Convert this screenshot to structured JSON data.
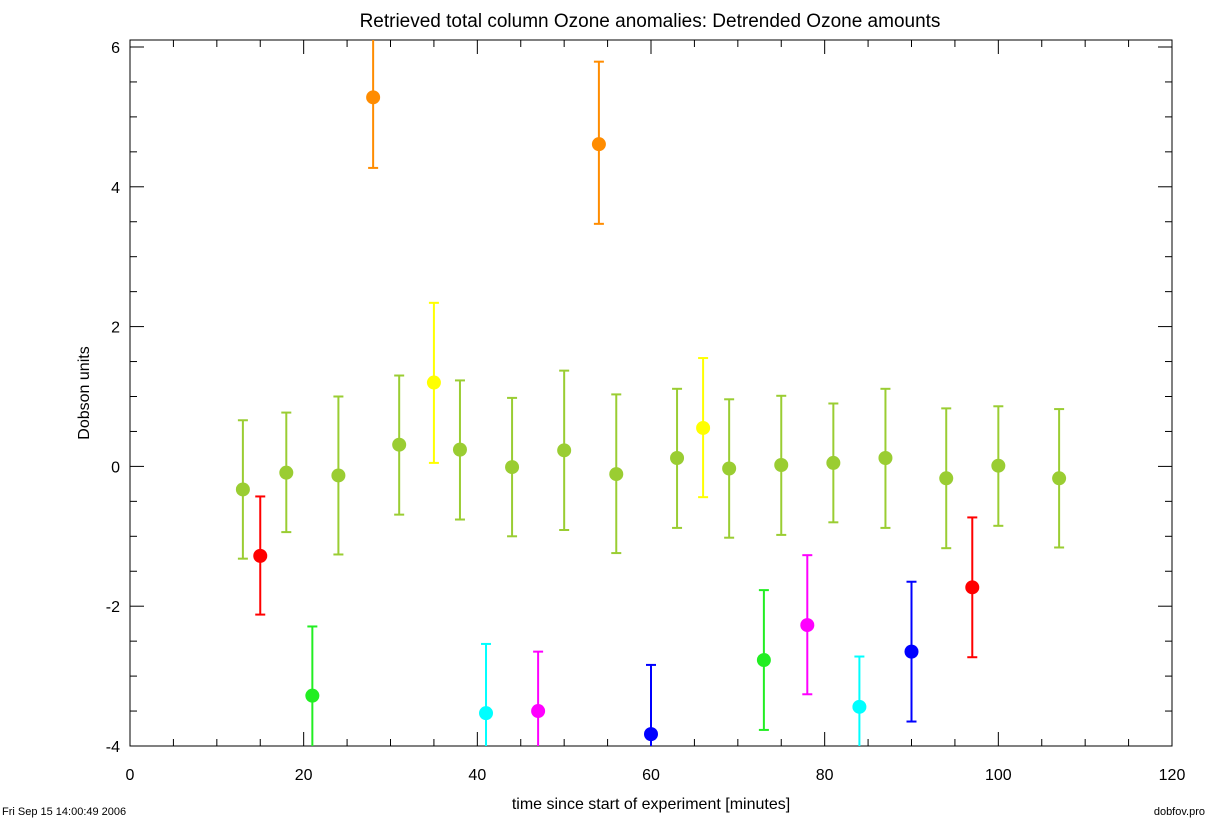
{
  "footer": {
    "timestamp": "Fri Sep 15 14:00:49 2006",
    "program": "dobfov.pro"
  },
  "chart_data": {
    "type": "scatter",
    "title": "Retrieved total column Ozone anomalies: Detrended Ozone amounts",
    "xlabel": "time since start of experiment [minutes]",
    "ylabel": "Dobson units",
    "xlim": [
      0,
      120
    ],
    "ylim": [
      -4,
      6.1
    ],
    "x_ticks": [
      0,
      20,
      40,
      60,
      80,
      100,
      120
    ],
    "x_tick_labels": [
      "0",
      "20",
      "40",
      "60",
      "80",
      "100",
      "120"
    ],
    "y_ticks": [
      -4,
      -2,
      0,
      2,
      4,
      6
    ],
    "y_tick_labels": [
      "-4",
      "-2",
      "0",
      "2",
      "4",
      "6"
    ],
    "grid": false,
    "legend": "none",
    "error_bars": true,
    "points": [
      {
        "x": 13,
        "y": -0.33,
        "lo": -1.32,
        "hi": 0.66,
        "color": "#9acd32"
      },
      {
        "x": 15,
        "y": -1.28,
        "lo": -2.12,
        "hi": -0.43,
        "color": "#ff0000"
      },
      {
        "x": 18,
        "y": -0.09,
        "lo": -0.94,
        "hi": 0.77,
        "color": "#9acd32"
      },
      {
        "x": 21,
        "y": -3.28,
        "lo": -4.3,
        "hi": -2.29,
        "color": "#22ee22"
      },
      {
        "x": 24,
        "y": -0.13,
        "lo": -1.26,
        "hi": 1.0,
        "color": "#9acd32"
      },
      {
        "x": 28,
        "y": 5.28,
        "lo": 4.27,
        "hi": 6.3,
        "color": "#ff8c00"
      },
      {
        "x": 31,
        "y": 0.31,
        "lo": -0.69,
        "hi": 1.3,
        "color": "#9acd32"
      },
      {
        "x": 35,
        "y": 1.2,
        "lo": 0.05,
        "hi": 2.34,
        "color": "#ffff00"
      },
      {
        "x": 38,
        "y": 0.24,
        "lo": -0.76,
        "hi": 1.23,
        "color": "#9acd32"
      },
      {
        "x": 41,
        "y": -3.53,
        "lo": -4.5,
        "hi": -2.54,
        "color": "#00ffff"
      },
      {
        "x": 44,
        "y": -0.01,
        "lo": -1.0,
        "hi": 0.98,
        "color": "#9acd32"
      },
      {
        "x": 47,
        "y": -3.5,
        "lo": -4.5,
        "hi": -2.65,
        "color": "#ff00ff"
      },
      {
        "x": 50,
        "y": 0.23,
        "lo": -0.91,
        "hi": 1.37,
        "color": "#9acd32"
      },
      {
        "x": 54,
        "y": 4.61,
        "lo": 3.47,
        "hi": 5.79,
        "color": "#ff8c00"
      },
      {
        "x": 56,
        "y": -0.11,
        "lo": -1.24,
        "hi": 1.03,
        "color": "#9acd32"
      },
      {
        "x": 60,
        "y": -3.83,
        "lo": -4.5,
        "hi": -2.84,
        "color": "#0000ff"
      },
      {
        "x": 63,
        "y": 0.12,
        "lo": -0.88,
        "hi": 1.11,
        "color": "#9acd32"
      },
      {
        "x": 66,
        "y": 0.55,
        "lo": -0.44,
        "hi": 1.55,
        "color": "#ffff00"
      },
      {
        "x": 69,
        "y": -0.03,
        "lo": -1.02,
        "hi": 0.96,
        "color": "#9acd32"
      },
      {
        "x": 73,
        "y": -2.77,
        "lo": -3.77,
        "hi": -1.77,
        "color": "#22ee22"
      },
      {
        "x": 75,
        "y": 0.02,
        "lo": -0.98,
        "hi": 1.01,
        "color": "#9acd32"
      },
      {
        "x": 78,
        "y": -2.27,
        "lo": -3.26,
        "hi": -1.27,
        "color": "#ff00ff"
      },
      {
        "x": 81,
        "y": 0.05,
        "lo": -0.8,
        "hi": 0.9,
        "color": "#9acd32"
      },
      {
        "x": 84,
        "y": -3.44,
        "lo": -4.5,
        "hi": -2.72,
        "color": "#00ffff"
      },
      {
        "x": 87,
        "y": 0.12,
        "lo": -0.88,
        "hi": 1.11,
        "color": "#9acd32"
      },
      {
        "x": 90,
        "y": -2.65,
        "lo": -3.65,
        "hi": -1.65,
        "color": "#0000ff"
      },
      {
        "x": 94,
        "y": -0.17,
        "lo": -1.17,
        "hi": 0.83,
        "color": "#9acd32"
      },
      {
        "x": 97,
        "y": -1.73,
        "lo": -2.73,
        "hi": -0.73,
        "color": "#ff0000"
      },
      {
        "x": 100,
        "y": 0.01,
        "lo": -0.85,
        "hi": 0.86,
        "color": "#9acd32"
      },
      {
        "x": 107,
        "y": -0.17,
        "lo": -1.16,
        "hi": 0.82,
        "color": "#9acd32"
      }
    ]
  }
}
